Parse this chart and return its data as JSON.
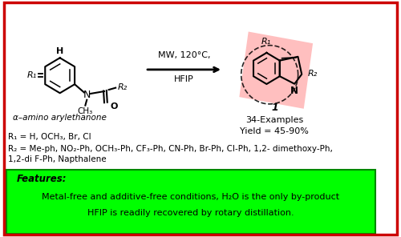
{
  "bg_color": "#ffffff",
  "border_color": "#cc0000",
  "arrow_label_line1": "MW, 120°C,",
  "arrow_label_line2": "HFIP",
  "substrate_label": "α–amino arylethanone",
  "r1_line": "R₁ = H, OCH₃, Br, Cl",
  "r2_line": "R₂ = Me-ph, NO₂-Ph, OCH₃-Ph, CF₃-Ph, CN-Ph, Br-Ph, Cl-Ph, 1,2- dimethoxy-Ph,",
  "r2_line2": "1,2-di F-Ph, Napthalene",
  "product_label1": "34-Examples",
  "product_label2": "Yield = 45-90%",
  "product_number": "1",
  "features_title": "Features:",
  "features_line1": "Metal-free and additive-free conditions, H₂O is the only by-product",
  "features_line2": "HFIP is readily recovered by rotary distillation.",
  "green_box_color": "#00ff00",
  "green_border_color": "#008800",
  "pink_highlight": "#ffb0b0"
}
